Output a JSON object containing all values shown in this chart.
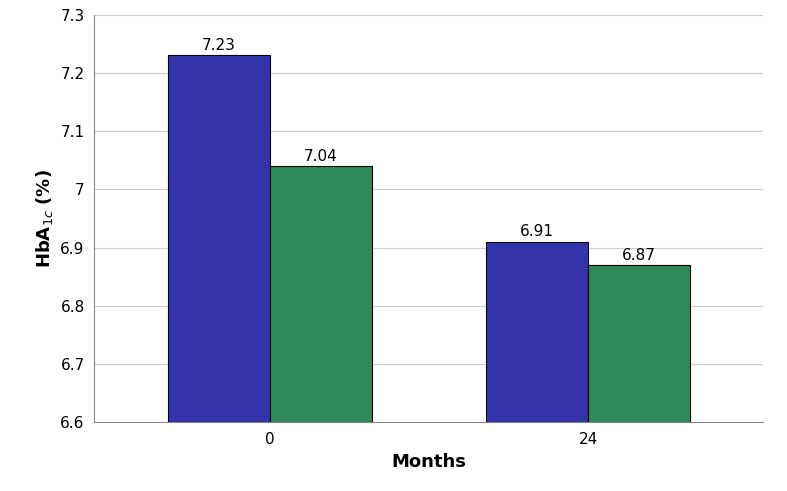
{
  "groups": [
    "0",
    "24"
  ],
  "blue_values": [
    7.23,
    6.91
  ],
  "green_values": [
    7.04,
    6.87
  ],
  "blue_color": "#3333AA",
  "green_color": "#2E8B57",
  "ylabel": "HbA$_{1c}$ (%)",
  "xlabel": "Months",
  "ylim": [
    6.6,
    7.3
  ],
  "ytick_values": [
    6.6,
    6.7,
    6.8,
    6.9,
    7.0,
    7.1,
    7.2,
    7.3
  ],
  "ytick_labels": [
    "6.6",
    "6.7",
    "6.8",
    "6.9",
    "7",
    "7.1",
    "7.2",
    "7.3"
  ],
  "bar_width": 0.32,
  "axis_label_fontsize": 13,
  "tick_fontsize": 11,
  "annotation_fontsize": 11,
  "background_color": "#ffffff",
  "grid_color": "#cccccc"
}
